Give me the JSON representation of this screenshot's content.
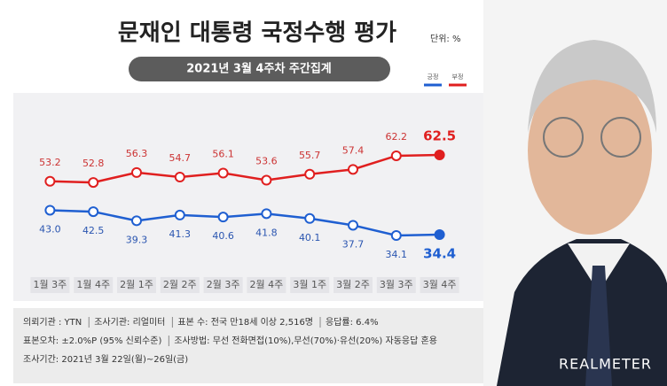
{
  "chart_data": {
    "type": "line",
    "title": "문재인 대통령 국정수행 평가",
    "unit": "단위: %",
    "subtitle": "2021년 3월 4주차 주간집계",
    "categories": [
      "1월 3주",
      "1월 4주",
      "2월 1주",
      "2월 2주",
      "2월 3주",
      "2월 4주",
      "3월 1주",
      "3월 2주",
      "3월 3주",
      "3월 4주"
    ],
    "series": [
      {
        "name": "긍정",
        "color": "#1f5fd1",
        "values": [
          43.0,
          42.5,
          39.3,
          41.3,
          40.6,
          41.8,
          40.1,
          37.7,
          34.1,
          34.4
        ],
        "value_labels": [
          "43.0",
          "42.5",
          "39.3",
          "41.3",
          "40.6",
          "41.8",
          "40.1",
          "37.7",
          "34.1",
          "34.4"
        ]
      },
      {
        "name": "부정",
        "color": "#e01f1f",
        "values": [
          53.2,
          52.8,
          56.3,
          54.7,
          56.1,
          53.6,
          55.7,
          57.4,
          62.2,
          62.5
        ]
      }
    ]
  },
  "notes": [
    "의뢰기관 : YTN",
    "조사기관: 리얼미터",
    "표본 수: 전국 만18세 이상 2,516명",
    "응답률: 6.4%",
    "표본오차: ±2.0%P (95% 신뢰수준)",
    "조사방법: 무선 전화면접(10%),무선(70%)·유선(20%) 자동응답 혼용",
    "조사기간: 2021년 3월 22일(월)~26일(금)"
  ],
  "brand": "REALMETER"
}
